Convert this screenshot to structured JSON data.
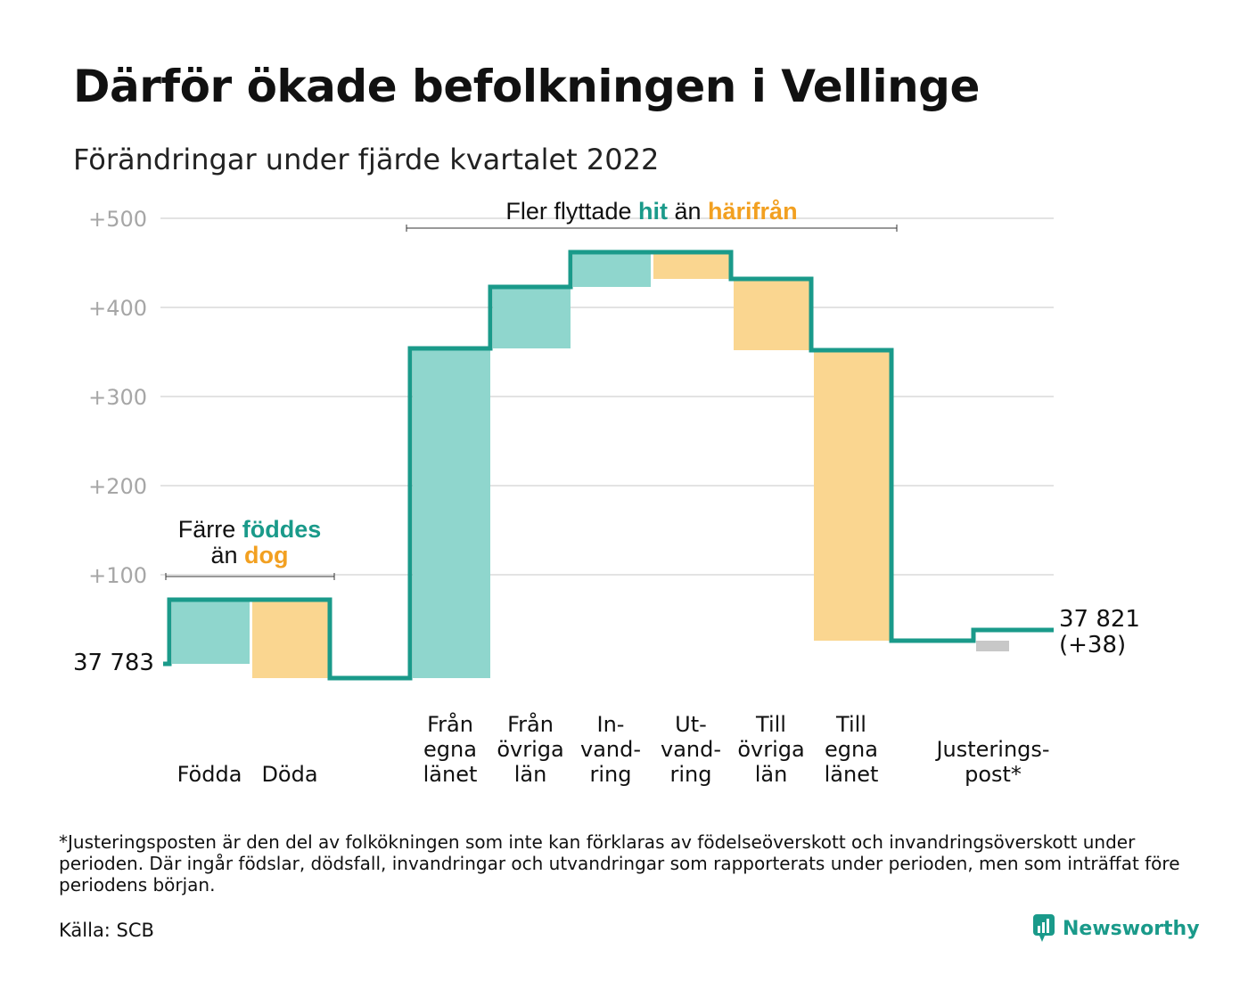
{
  "title": "Därför ökade befolkningen i Vellinge",
  "subtitle": "Förändringar under fjärde kvartalet 2022",
  "colors": {
    "teal_fill": "#8fd6cd",
    "teal_line": "#1a9a8a",
    "orange_fill": "#fad690",
    "orange_text": "#f2a021",
    "gray_fill": "#c8c8c8",
    "grid": "#e3e3e3",
    "tick_text": "#a6a6a6"
  },
  "annotations": {
    "births": {
      "before": "Färre ",
      "hit": "föddes",
      "line2": "än ",
      "out": "dog"
    },
    "migration": {
      "before": "Fler flyttade ",
      "hit": "hit",
      "mid": " än ",
      "out": "härifrån"
    }
  },
  "chart_data": {
    "type": "waterfall",
    "y_ticks": [
      "+100",
      "+200",
      "+300",
      "+400",
      "+500"
    ],
    "ylim": [
      -30,
      500
    ],
    "start": {
      "label": "37 783",
      "value": 37783
    },
    "end": {
      "label": "37 821",
      "change_label": "(+38)",
      "value": 37821,
      "change": 38
    },
    "steps": [
      {
        "lines": [
          "Födda"
        ],
        "change": 72,
        "group": "in",
        "category_key": "fodda"
      },
      {
        "lines": [
          "Döda"
        ],
        "change": -88,
        "group": "out",
        "category_key": "doda"
      },
      {
        "lines": [
          "Från",
          "egna",
          "länet"
        ],
        "change": 370,
        "group": "in",
        "category_key": "fran_egna_lanet"
      },
      {
        "lines": [
          "Från",
          "övriga",
          "län"
        ],
        "change": 69,
        "group": "in",
        "category_key": "fran_ovriga_lan"
      },
      {
        "lines": [
          "In-",
          "vand-",
          "ring"
        ],
        "change": 39,
        "group": "in",
        "category_key": "invandring"
      },
      {
        "lines": [
          "Ut-",
          "vand-",
          "ring"
        ],
        "change": -30,
        "group": "out",
        "category_key": "utvandring"
      },
      {
        "lines": [
          "Till",
          "övriga",
          "län"
        ],
        "change": -80,
        "group": "out",
        "category_key": "till_ovriga_lan"
      },
      {
        "lines": [
          "Till",
          "egna",
          "länet"
        ],
        "change": -326,
        "group": "out",
        "category_key": "till_egna_lanet"
      },
      {
        "lines": [
          "Justerings-",
          "post*"
        ],
        "change": 12,
        "group": "adjustment",
        "category_key": "justeringspost"
      }
    ]
  },
  "footnote": "*Justeringsposten är den del av folkökningen som inte kan förklaras av födelseöverskott och invandringsöverskott under perioden. Där ingår födslar, dödsfall, invandringar och utvandringar som rapporterats under perioden, men som inträffat före periodens början.",
  "source": "Källa: SCB",
  "brand": {
    "name": "Newsworthy",
    "icon": "newsworthy-logo-icon"
  }
}
